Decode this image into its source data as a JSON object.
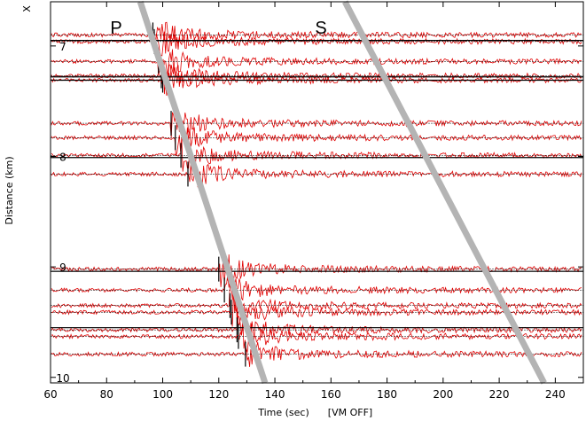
{
  "chart_data": {
    "type": "line",
    "title": "",
    "xlabel": "Time (sec)",
    "xlabel_note": "[VM OFF]",
    "ylabel": "Distance (km)",
    "corner_label": "X",
    "xlim": [
      60,
      250
    ],
    "ylim": [
      6.6,
      10.05
    ],
    "x_ticks": [
      60,
      80,
      100,
      120,
      140,
      160,
      180,
      200,
      220,
      240
    ],
    "y_ticks": [
      7,
      8,
      9,
      10
    ],
    "y_tick_labels": [
      "7",
      "8",
      "9",
      "10"
    ],
    "trace_color": "#e00000",
    "phase_line_color": "#b4b4b4",
    "phases": [
      {
        "label": "P",
        "line": [
          [
            92,
            6.6
          ],
          [
            136.5,
            10.05
          ]
        ]
      },
      {
        "label": "S",
        "line": [
          [
            165,
            6.6
          ],
          [
            236,
            10.05
          ]
        ]
      }
    ],
    "traces": [
      {
        "distance": 6.9,
        "onset": 96.5
      },
      {
        "distance": 6.96,
        "onset": 97.0
      },
      {
        "distance": 7.14,
        "onset": 98.5
      },
      {
        "distance": 7.27,
        "onset": 99.5
      },
      {
        "distance": 7.31,
        "onset": 100.0
      },
      {
        "distance": 7.7,
        "onset": 103.0
      },
      {
        "distance": 7.83,
        "onset": 104.5
      },
      {
        "distance": 7.99,
        "onset": 106.5
      },
      {
        "distance": 8.16,
        "onset": 109.0
      },
      {
        "distance": 9.02,
        "onset": 120.0
      },
      {
        "distance": 9.21,
        "onset": 122.0
      },
      {
        "distance": 9.35,
        "onset": 124.0
      },
      {
        "distance": 9.41,
        "onset": 124.5
      },
      {
        "distance": 9.57,
        "onset": 126.5
      },
      {
        "distance": 9.63,
        "onset": 127.0
      },
      {
        "distance": 9.79,
        "onset": 129.5
      }
    ],
    "reference_lines": [
      6.95,
      7.28,
      7.31,
      8.01,
      9.04,
      9.55
    ]
  }
}
